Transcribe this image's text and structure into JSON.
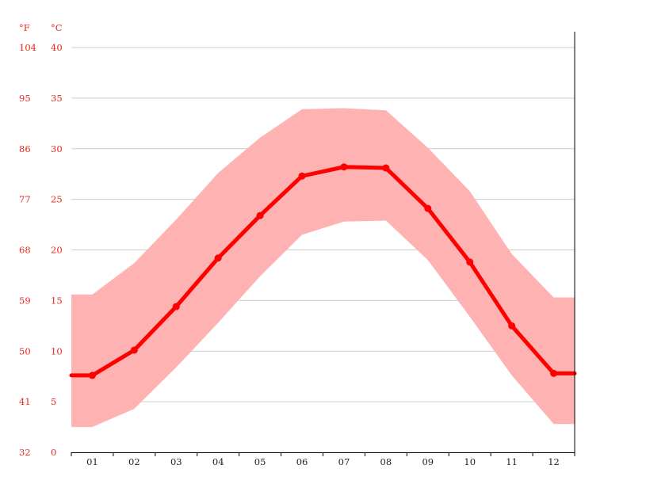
{
  "chart_data": {
    "type": "line",
    "title": "",
    "xlabel": "",
    "ylabel": "",
    "units": {
      "fahrenheit": "°F",
      "celsius": "°C"
    },
    "categories": [
      "01",
      "02",
      "03",
      "04",
      "05",
      "06",
      "07",
      "08",
      "09",
      "10",
      "11",
      "12"
    ],
    "ylim": [
      0,
      40
    ],
    "y_ticks_c": [
      "0",
      "5",
      "10",
      "15",
      "20",
      "25",
      "30",
      "35",
      "40"
    ],
    "y_ticks_f": [
      "32",
      "41",
      "50",
      "59",
      "68",
      "77",
      "86",
      "95",
      "104"
    ],
    "grid": true,
    "series": [
      {
        "role": "mean",
        "values": [
          7.6,
          10.1,
          14.4,
          19.2,
          23.4,
          27.3,
          28.2,
          28.1,
          24.1,
          18.8,
          12.5,
          7.8
        ]
      },
      {
        "role": "max",
        "values": [
          15.6,
          18.7,
          23.0,
          27.6,
          31.1,
          33.9,
          34.0,
          33.8,
          30.1,
          25.8,
          19.6,
          15.3
        ]
      },
      {
        "role": "min",
        "values": [
          2.5,
          4.3,
          8.4,
          12.8,
          17.4,
          21.5,
          22.8,
          22.9,
          19.0,
          13.4,
          7.6,
          2.8
        ]
      }
    ],
    "colors": {
      "line": "#ff0000",
      "band": "#ffb2b2",
      "grid": "#cccccc",
      "tick_y": "#e8291c",
      "tick_x": "#222222"
    }
  }
}
